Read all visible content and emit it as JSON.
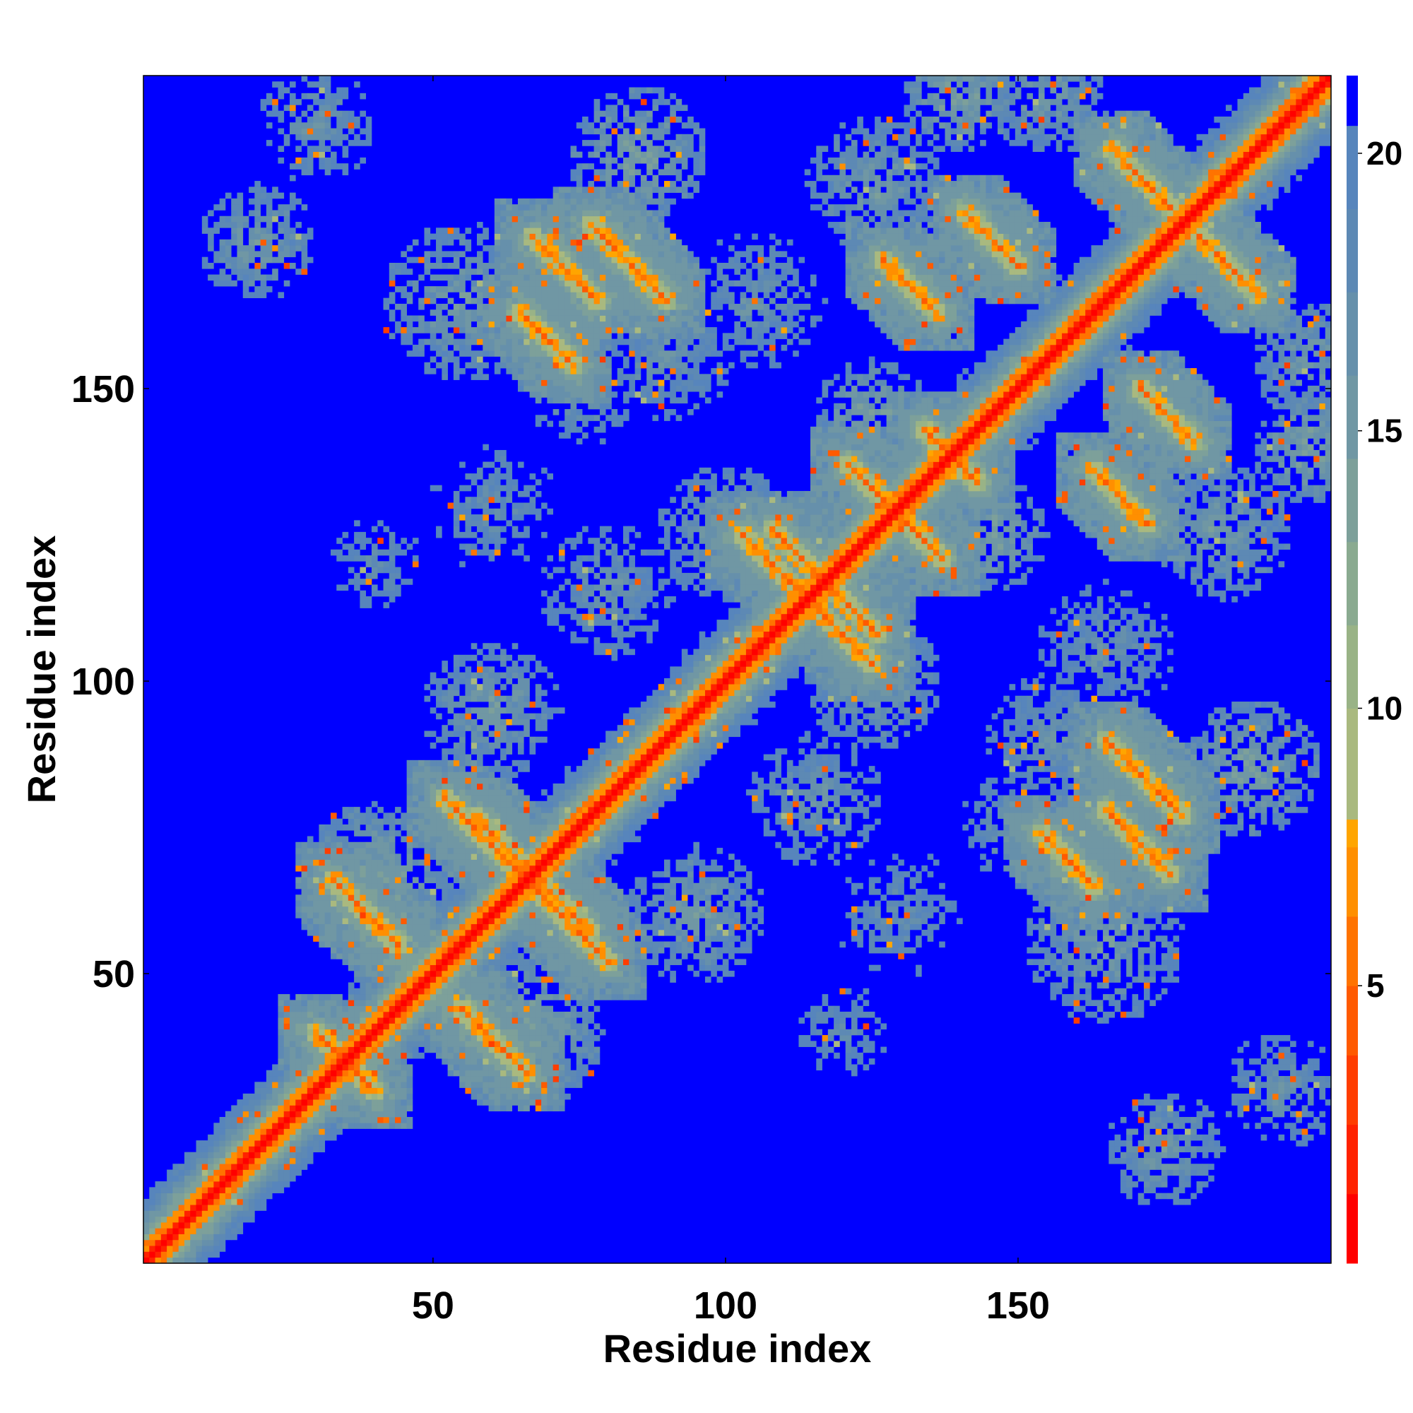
{
  "chart_data": {
    "type": "heatmap",
    "title": "",
    "xlabel": "Residue index",
    "ylabel": "Residue index",
    "n_residues": 203,
    "xlim": [
      1,
      203
    ],
    "ylim": [
      1,
      203
    ],
    "x_ticks": [
      50,
      100,
      150
    ],
    "y_ticks": [
      50,
      100,
      150
    ],
    "colorbar": {
      "ticks": [
        5,
        10,
        15,
        20
      ],
      "range": [
        0,
        21.4
      ],
      "levels": [
        {
          "max": 1.25,
          "color": "#ff0000"
        },
        {
          "max": 2.5,
          "color": "#ff2200"
        },
        {
          "max": 3.75,
          "color": "#ff3d00"
        },
        {
          "max": 5.0,
          "color": "#ff5a00"
        },
        {
          "max": 6.25,
          "color": "#ff7300"
        },
        {
          "max": 7.5,
          "color": "#ff8f00"
        },
        {
          "max": 8.0,
          "color": "#ffa500"
        },
        {
          "max": 10.0,
          "color": "#a9b97f"
        },
        {
          "max": 11.5,
          "color": "#99b386"
        },
        {
          "max": 13.0,
          "color": "#8aaa90"
        },
        {
          "max": 14.5,
          "color": "#7da09a"
        },
        {
          "max": 16.0,
          "color": "#7097a4"
        },
        {
          "max": 17.5,
          "color": "#6690ab"
        },
        {
          "max": 19.0,
          "color": "#5d89b4"
        },
        {
          "max": 20.5,
          "color": "#5785bc"
        },
        {
          "max": 21.4,
          "color": "#0000ff"
        }
      ]
    },
    "background_value": 21.4,
    "diagonal_band": {
      "core_value": 1.0,
      "inner_value": 6.0,
      "shoulder_value": 12.0,
      "fade_value": 17.0
    },
    "contact_lines": [
      {
        "type": "antiparallel",
        "i_start": 30,
        "j_start": 40,
        "length": 10
      },
      {
        "type": "antiparallel",
        "i_start": 33,
        "j_start": 66,
        "length": 12
      },
      {
        "type": "antiparallel",
        "i_start": 52,
        "j_start": 80,
        "length": 16
      },
      {
        "type": "antiparallel",
        "i_start": 57,
        "j_start": 77,
        "length": 12
      },
      {
        "type": "antiparallel",
        "i_start": 103,
        "j_start": 125,
        "length": 12
      },
      {
        "type": "antiparallel",
        "i_start": 108,
        "j_start": 126,
        "length": 10
      },
      {
        "type": "antiparallel",
        "i_start": 121,
        "j_start": 137,
        "length": 9
      },
      {
        "type": "antiparallel",
        "i_start": 134,
        "j_start": 143,
        "length": 6
      },
      {
        "type": "antiparallel",
        "i_start": 77,
        "j_start": 178,
        "length": 14
      },
      {
        "type": "antiparallel",
        "i_start": 141,
        "j_start": 180,
        "length": 10
      },
      {
        "type": "antiparallel",
        "i_start": 67,
        "j_start": 176,
        "length": 12
      },
      {
        "type": "antiparallel",
        "i_start": 166,
        "j_start": 191,
        "length": 12
      },
      {
        "type": "antiparallel",
        "i_start": 65,
        "j_start": 163,
        "length": 10
      },
      {
        "type": "antiparallel",
        "i_start": 127,
        "j_start": 172,
        "length": 10
      }
    ],
    "contact_blobs": [
      {
        "i": 40,
        "j": 65,
        "r": 14,
        "value": 14
      },
      {
        "i": 60,
        "j": 95,
        "r": 12,
        "value": 15
      },
      {
        "i": 45,
        "j": 55,
        "r": 10,
        "value": 13
      },
      {
        "i": 100,
        "j": 125,
        "r": 12,
        "value": 15
      },
      {
        "i": 80,
        "j": 115,
        "r": 12,
        "value": 16
      },
      {
        "i": 60,
        "j": 130,
        "r": 12,
        "value": 17
      },
      {
        "i": 55,
        "j": 165,
        "r": 14,
        "value": 15
      },
      {
        "i": 105,
        "j": 165,
        "r": 12,
        "value": 16
      },
      {
        "i": 125,
        "j": 185,
        "r": 12,
        "value": 15
      },
      {
        "i": 140,
        "j": 200,
        "r": 10,
        "value": 14
      },
      {
        "i": 20,
        "j": 175,
        "r": 10,
        "value": 15
      },
      {
        "i": 155,
        "j": 200,
        "r": 10,
        "value": 15
      },
      {
        "i": 30,
        "j": 195,
        "r": 10,
        "value": 16
      },
      {
        "i": 85,
        "j": 190,
        "r": 12,
        "value": 14
      },
      {
        "i": 125,
        "j": 145,
        "r": 10,
        "value": 14
      },
      {
        "i": 90,
        "j": 155,
        "r": 11,
        "value": 16
      },
      {
        "i": 40,
        "j": 120,
        "r": 9,
        "value": 17
      },
      {
        "i": 75,
        "j": 150,
        "r": 10,
        "value": 16
      }
    ]
  }
}
